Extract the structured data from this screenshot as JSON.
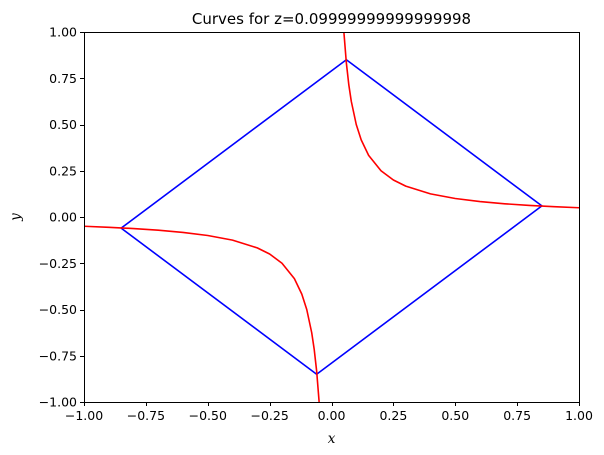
{
  "chart_data": {
    "type": "line",
    "title": "Curves for z=0.09999999999999998",
    "xlabel": "x",
    "ylabel": "y",
    "xlim": [
      -1.0,
      1.0
    ],
    "ylim": [
      -1.0,
      1.0
    ],
    "xticks": [
      "−1.00",
      "−0.75",
      "−0.50",
      "−0.25",
      "0.00",
      "0.25",
      "0.50",
      "0.75",
      "1.00"
    ],
    "yticks": [
      "−1.00",
      "−0.75",
      "−0.50",
      "−0.25",
      "0.00",
      "0.25",
      "0.50",
      "0.75",
      "1.00"
    ],
    "grid": false,
    "series": [
      {
        "color": "#0000ff",
        "x": [
          -0.85,
          0.06,
          0.85,
          -0.06,
          -0.85
        ],
        "y": [
          -0.06,
          0.85,
          0.06,
          -0.85,
          -0.06
        ]
      },
      {
        "color": "#ff0000",
        "x": [
          0.05,
          0.06,
          0.07,
          0.08,
          0.1,
          0.12,
          0.15,
          0.2,
          0.25,
          0.3,
          0.4,
          0.5,
          0.6,
          0.7,
          0.8,
          0.9,
          1.0
        ],
        "y": [
          1.0,
          0.833,
          0.714,
          0.625,
          0.5,
          0.417,
          0.333,
          0.25,
          0.2,
          0.167,
          0.125,
          0.1,
          0.0833,
          0.0714,
          0.0625,
          0.0556,
          0.05
        ]
      },
      {
        "color": "#ff0000",
        "x": [
          -1.0,
          -0.9,
          -0.8,
          -0.7,
          -0.6,
          -0.5,
          -0.4,
          -0.3,
          -0.25,
          -0.2,
          -0.15,
          -0.12,
          -0.1,
          -0.08,
          -0.07,
          -0.06,
          -0.05
        ],
        "y": [
          -0.05,
          -0.0556,
          -0.0625,
          -0.0714,
          -0.0833,
          -0.1,
          -0.125,
          -0.167,
          -0.2,
          -0.25,
          -0.333,
          -0.417,
          -0.5,
          -0.625,
          -0.714,
          -0.833,
          -1.0
        ]
      }
    ]
  }
}
